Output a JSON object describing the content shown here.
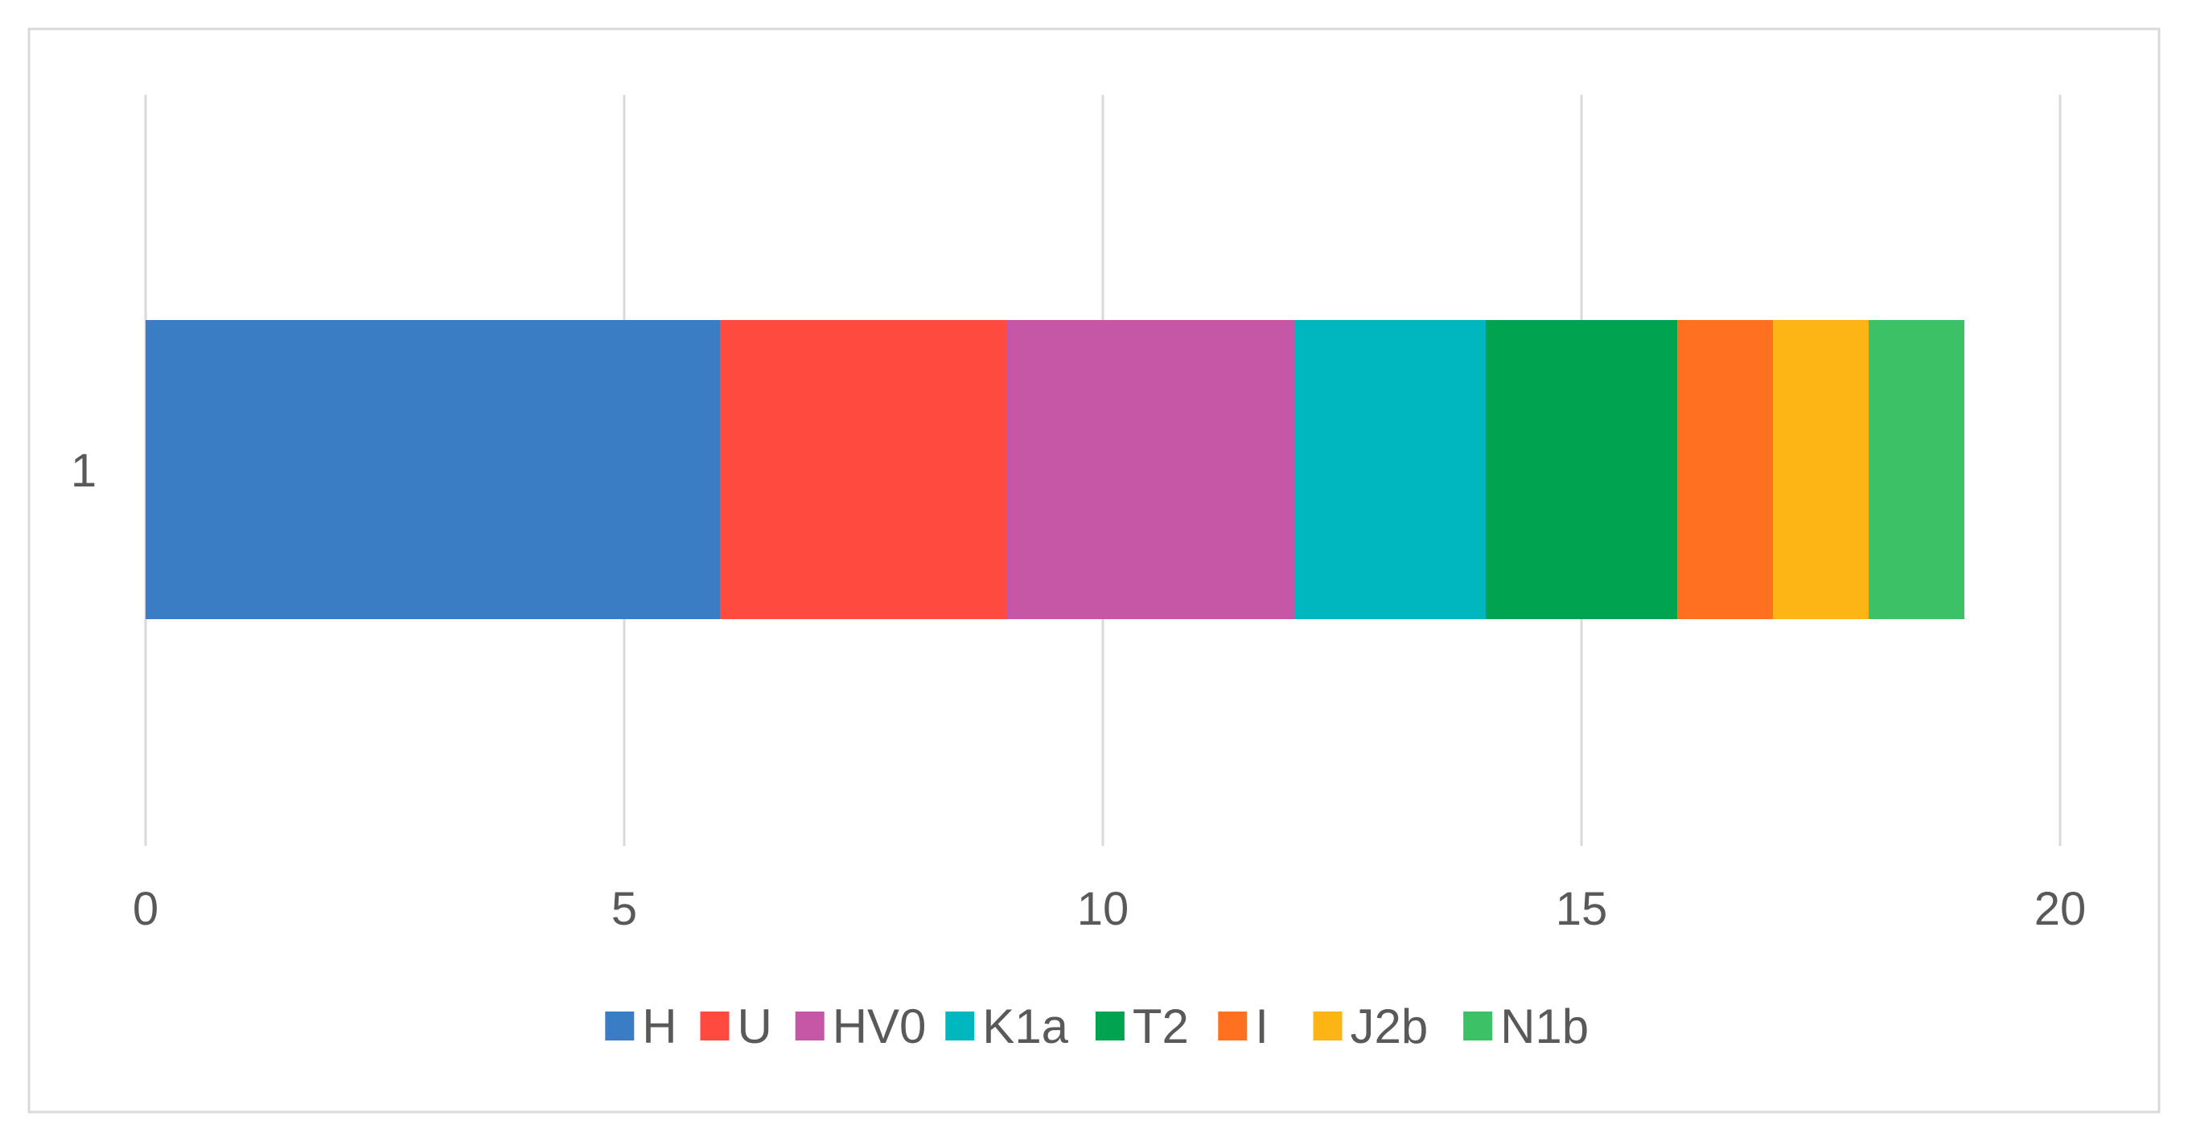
{
  "chart_data": {
    "type": "bar",
    "orientation": "horizontal",
    "stacked": true,
    "categories": [
      "1"
    ],
    "series": [
      {
        "name": "H",
        "values": [
          6
        ],
        "color": "#3B7DC4"
      },
      {
        "name": "U",
        "values": [
          3
        ],
        "color": "#FF4A40"
      },
      {
        "name": "HV0",
        "values": [
          3
        ],
        "color": "#C656A6"
      },
      {
        "name": "K1a",
        "values": [
          2
        ],
        "color": "#00B7C0"
      },
      {
        "name": "T2",
        "values": [
          2
        ],
        "color": "#00A350"
      },
      {
        "name": "I",
        "values": [
          1
        ],
        "color": "#FF7020"
      },
      {
        "name": "J2b",
        "values": [
          1
        ],
        "color": "#FDB515"
      },
      {
        "name": "N1b",
        "values": [
          1
        ],
        "color": "#3DC167"
      }
    ],
    "xlim": [
      0,
      20
    ],
    "x_ticks": [
      "0",
      "5",
      "10",
      "15",
      "20"
    ],
    "grid": "vertical",
    "legend": "bottom",
    "title": "",
    "xlabel": "",
    "ylabel": ""
  }
}
